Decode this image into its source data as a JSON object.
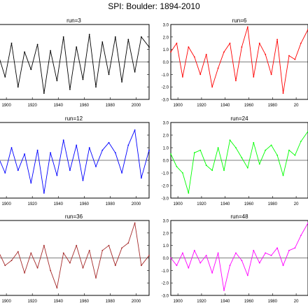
{
  "figure_title": "SPI:  Boulder: 1894-2010",
  "chart_data": [
    {
      "type": "line",
      "title": "run=3",
      "color": "#000000",
      "xlim": [
        1894,
        2010
      ],
      "ylim": [
        -3,
        3
      ],
      "xticks": [
        "1900",
        "1920",
        "1940",
        "1960",
        "1980",
        "2000"
      ],
      "yticks": [
        "-3.0",
        "-2.0",
        "-1.0",
        "0.0",
        "1.0",
        "2.0",
        "3.0"
      ],
      "x": [
        1894,
        1899,
        1904,
        1909,
        1914,
        1919,
        1924,
        1929,
        1934,
        1939,
        1944,
        1949,
        1954,
        1959,
        1964,
        1969,
        1974,
        1979,
        1984,
        1989,
        1994,
        1999,
        2004,
        2010
      ],
      "values": [
        0.5,
        -1.2,
        1.5,
        -2.0,
        0.8,
        -0.6,
        1.4,
        -2.5,
        0.9,
        -1.5,
        2.0,
        -2.2,
        1.2,
        -1.4,
        2.2,
        -2.0,
        1.6,
        -1.0,
        2.0,
        -1.6,
        1.8,
        -0.8,
        2.0,
        1.2
      ]
    },
    {
      "type": "line",
      "title": "run=6",
      "color": "#ff0000",
      "xlim": [
        1894,
        2010
      ],
      "ylim": [
        -3,
        3
      ],
      "xticks": [
        "1900",
        "1920",
        "1940",
        "1960",
        "1980",
        "20"
      ],
      "yticks": [
        "-3.0",
        "-2.0",
        "-1.0",
        "0.0",
        "1.0",
        "2.0",
        "3.0"
      ],
      "x": [
        1894,
        1899,
        1904,
        1909,
        1914,
        1919,
        1924,
        1929,
        1934,
        1939,
        1944,
        1949,
        1954,
        1959,
        1964,
        1969,
        1974,
        1979,
        1984,
        1989,
        1994,
        1999,
        2004,
        2010
      ],
      "values": [
        0.8,
        1.5,
        -1.2,
        1.2,
        0.4,
        -1.0,
        0.6,
        -2.0,
        -0.5,
        0.8,
        1.5,
        -1.5,
        1.2,
        2.8,
        -1.2,
        1.5,
        0.6,
        -1.0,
        1.8,
        -2.5,
        0.5,
        0.2,
        1.5,
        2.6
      ]
    },
    {
      "type": "line",
      "title": "run=12",
      "color": "#0000ff",
      "xlim": [
        1894,
        2010
      ],
      "ylim": [
        -3,
        3
      ],
      "xticks": [
        "1900",
        "1920",
        "1940",
        "1960",
        "1980",
        "2000"
      ],
      "yticks": [
        "-3.0",
        "-2.0",
        "-1.0",
        "0.0",
        "1.0",
        "2.0",
        "3.0"
      ],
      "x": [
        1894,
        1899,
        1904,
        1909,
        1914,
        1919,
        1924,
        1929,
        1934,
        1939,
        1944,
        1949,
        1954,
        1959,
        1964,
        1969,
        1974,
        1979,
        1984,
        1989,
        1994,
        1999,
        2004,
        2010
      ],
      "values": [
        0.2,
        -1.0,
        1.0,
        -0.8,
        0.5,
        -1.8,
        0.8,
        -2.6,
        0.6,
        -1.2,
        1.6,
        -0.8,
        1.2,
        -1.6,
        1.0,
        -0.5,
        0.8,
        1.4,
        0.6,
        -1.0,
        1.2,
        2.4,
        -1.4,
        0.8
      ]
    },
    {
      "type": "line",
      "title": "run=24",
      "color": "#00ff00",
      "xlim": [
        1894,
        2010
      ],
      "ylim": [
        -3,
        3
      ],
      "xticks": [
        "1900",
        "1920",
        "1940",
        "1960",
        "1980",
        "20"
      ],
      "yticks": [
        "-3.0",
        "-2.0",
        "-1.0",
        "0.0",
        "1.0",
        "2.0",
        "3.0"
      ],
      "x": [
        1894,
        1899,
        1904,
        1909,
        1914,
        1919,
        1924,
        1929,
        1934,
        1939,
        1944,
        1949,
        1954,
        1959,
        1964,
        1969,
        1974,
        1979,
        1984,
        1989,
        1994,
        1999,
        2004,
        2010
      ],
      "values": [
        0.5,
        -0.5,
        -1.0,
        -2.6,
        0.6,
        0.8,
        -0.4,
        -0.8,
        1.0,
        -0.8,
        1.6,
        1.0,
        0.2,
        -0.6,
        1.4,
        -0.3,
        0.8,
        1.2,
        0.4,
        -1.2,
        0.8,
        0.4,
        1.5,
        2.3
      ]
    },
    {
      "type": "line",
      "title": "run=36",
      "color": "#a52a2a",
      "xlim": [
        1894,
        2010
      ],
      "ylim": [
        -3,
        3
      ],
      "xticks": [
        "1900",
        "1920",
        "1940",
        "1960",
        "1980",
        "2000"
      ],
      "yticks": [
        "-3.0",
        "-2.0",
        "-1.0",
        "0.0",
        "1.0",
        "2.0",
        "3.0"
      ],
      "x": [
        1894,
        1899,
        1904,
        1909,
        1914,
        1919,
        1924,
        1929,
        1934,
        1939,
        1944,
        1949,
        1954,
        1959,
        1964,
        1969,
        1974,
        1979,
        1984,
        1989,
        1994,
        1999,
        2004,
        2010
      ],
      "values": [
        0.5,
        -0.6,
        -0.2,
        0.5,
        -1.2,
        0.4,
        -0.8,
        1.0,
        -1.0,
        -2.4,
        0.4,
        -0.4,
        1.0,
        -0.8,
        0.6,
        -1.6,
        0.6,
        1.0,
        -0.6,
        0.8,
        1.2,
        2.8,
        -0.6,
        0.2
      ]
    },
    {
      "type": "line",
      "title": "run=48",
      "color": "#ff00ff",
      "xlim": [
        1894,
        2010
      ],
      "ylim": [
        -3,
        3
      ],
      "xticks": [
        "1900",
        "1920",
        "1940",
        "1960",
        "1980",
        "20"
      ],
      "yticks": [
        "-3.0",
        "-2.0",
        "-1.0",
        "0.0",
        "1.0",
        "2.0",
        "3.0"
      ],
      "x": [
        1894,
        1899,
        1904,
        1909,
        1914,
        1919,
        1924,
        1929,
        1934,
        1939,
        1944,
        1949,
        1954,
        1959,
        1964,
        1969,
        1974,
        1979,
        1984,
        1989,
        1994,
        1999,
        2004,
        2010
      ],
      "values": [
        0.0,
        -0.6,
        0.4,
        -0.8,
        0.6,
        -0.4,
        0.2,
        -1.2,
        0.4,
        -2.6,
        -0.6,
        0.4,
        -0.2,
        -1.4,
        0.6,
        -0.4,
        0.4,
        0.2,
        0.8,
        -0.6,
        0.6,
        0.8,
        1.8,
        2.8
      ]
    }
  ]
}
